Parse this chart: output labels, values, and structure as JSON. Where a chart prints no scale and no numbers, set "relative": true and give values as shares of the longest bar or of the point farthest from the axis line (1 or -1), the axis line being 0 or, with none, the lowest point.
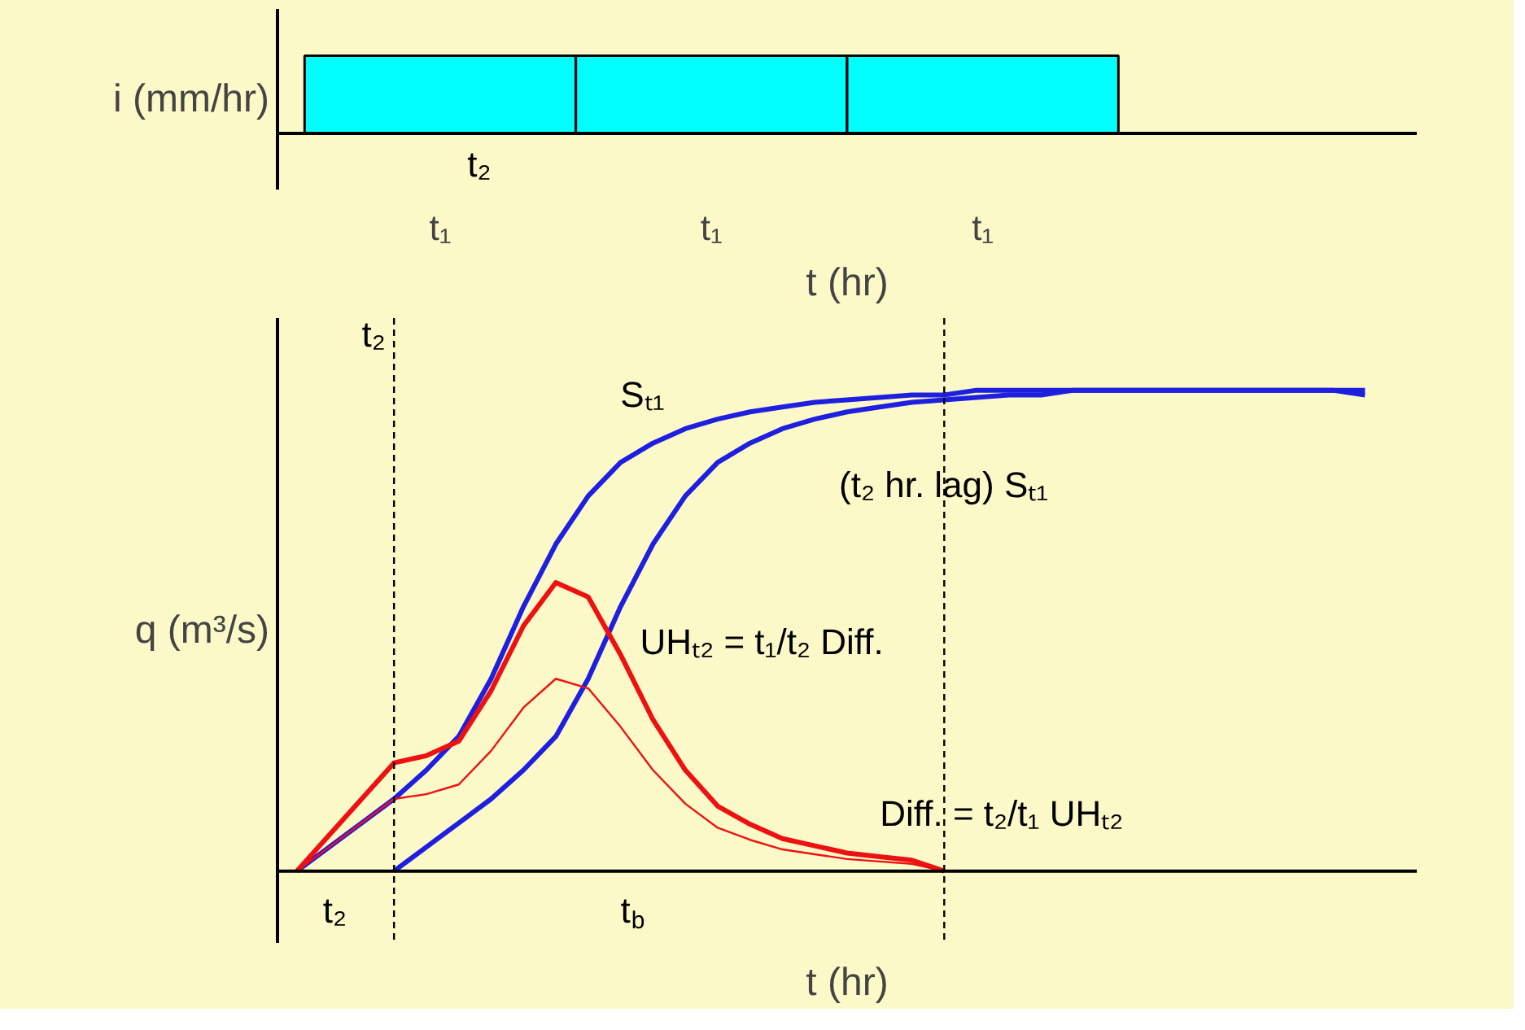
{
  "chart_data": [
    {
      "type": "bar",
      "relative": true,
      "ylabel": "i (mm/hr)",
      "xlabel": "t (hr)",
      "categories": [
        "t₁",
        "t₁",
        "t₁"
      ],
      "values": [
        1,
        1,
        1
      ],
      "color": "#00ffff",
      "tick_labels": "x",
      "annotations": [
        "t₂"
      ]
    },
    {
      "type": "line",
      "relative": true,
      "ylabel": "q (m³/s)",
      "xlabel": "t (hr)",
      "tick_labels": false,
      "categories": [
        null,
        null,
        null,
        null,
        null,
        null,
        null,
        null,
        null,
        null,
        null,
        null,
        null,
        null,
        null,
        null,
        null,
        null,
        null,
        null,
        null,
        null,
        null,
        null,
        null,
        null,
        null,
        null,
        null,
        null,
        null,
        null,
        null,
        null
      ],
      "series": [
        {
          "name": "Sₜ₁",
          "color": "#1f1fe0",
          "values": [
            0,
            0.05,
            0.1,
            0.15,
            0.21,
            0.28,
            0.4,
            0.55,
            0.68,
            0.78,
            0.85,
            0.89,
            0.92,
            0.94,
            0.955,
            0.965,
            0.975,
            0.98,
            0.985,
            0.99,
            0.99,
            1,
            1,
            1,
            1,
            1,
            1,
            1,
            1,
            1,
            1,
            1,
            1,
            0.99
          ]
        },
        {
          "name": "(t₂ hr. lag) Sₜ₁",
          "color": "#1f1fe0",
          "values": [
            null,
            null,
            null,
            0,
            0.05,
            0.1,
            0.15,
            0.21,
            0.28,
            0.4,
            0.55,
            0.68,
            0.78,
            0.85,
            0.89,
            0.92,
            0.94,
            0.955,
            0.965,
            0.975,
            0.98,
            0.985,
            0.99,
            0.99,
            1,
            1,
            1,
            1,
            1,
            1,
            1,
            1,
            1,
            1
          ]
        },
        {
          "name": "UHₜ₂ = t₁/t₂ Diff.",
          "color": "#ee1111",
          "values": [
            0,
            0.075,
            0.15,
            0.225,
            0.24,
            0.27,
            0.375,
            0.51,
            0.6,
            0.57,
            0.45,
            0.315,
            0.21,
            0.135,
            0.0975,
            0.0675,
            0.0525,
            0.0375,
            0.03,
            0.0225,
            0,
            null,
            null,
            null,
            null,
            null,
            null,
            null,
            null,
            null,
            null,
            null,
            null,
            null
          ]
        },
        {
          "name": "Diff. = t₂/t₁ UHₜ₂",
          "color": "#ee1111",
          "values": [
            0,
            0.05,
            0.1,
            0.15,
            0.16,
            0.18,
            0.25,
            0.34,
            0.4,
            0.38,
            0.3,
            0.21,
            0.14,
            0.09,
            0.065,
            0.045,
            0.035,
            0.025,
            0.02,
            0.015,
            0,
            null,
            null,
            null,
            null,
            null,
            null,
            null,
            null,
            null,
            null,
            null,
            null,
            null
          ]
        }
      ],
      "annotations": [
        "t₂",
        "t₂",
        "t$_{b}$"
      ]
    }
  ]
}
